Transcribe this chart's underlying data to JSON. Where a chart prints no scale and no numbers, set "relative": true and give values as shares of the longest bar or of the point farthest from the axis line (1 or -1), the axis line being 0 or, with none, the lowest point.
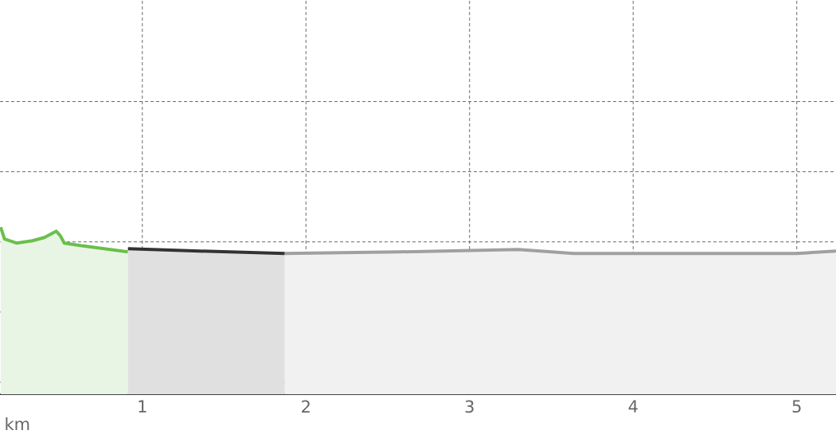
{
  "chart_data": {
    "type": "area",
    "relative": true,
    "xlabel": "km",
    "xlim": [
      0.13,
      5.24
    ],
    "xticks": [
      1,
      2,
      3,
      4,
      5
    ],
    "grid": true,
    "series": [
      {
        "color": "#6abf4b",
        "x": [
          0.134,
          0.158,
          0.231,
          0.328,
          0.401,
          0.474,
          0.499,
          0.523,
          0.62,
          0.766,
          0.912
        ],
        "values": [
          1.0,
          0.929,
          0.905,
          0.919,
          0.938,
          0.976,
          0.948,
          0.905,
          0.89,
          0.871,
          0.852
        ]
      },
      {
        "color": "#333333",
        "x": [
          0.912,
          1.35,
          1.871
        ],
        "values": [
          0.871,
          0.857,
          0.843
        ]
      },
      {
        "color": "#a0a0a0",
        "x": [
          1.871,
          2.567,
          3.297,
          3.637,
          5.0,
          5.24
        ],
        "values": [
          0.843,
          0.852,
          0.867,
          0.843,
          0.843,
          0.857
        ]
      }
    ]
  }
}
